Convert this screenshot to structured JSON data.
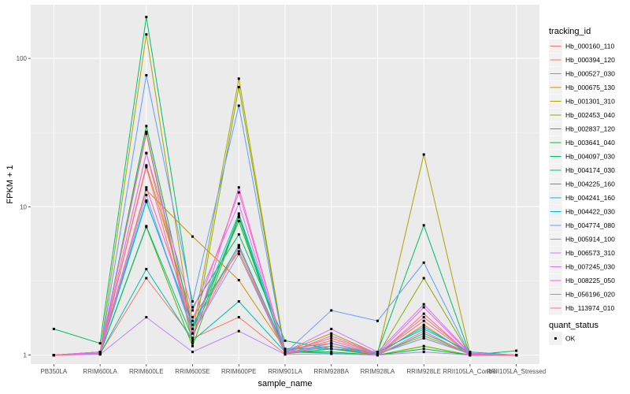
{
  "chart_data": {
    "type": "line",
    "xlabel": "sample_name",
    "ylabel": "FPKM + 1",
    "y_scale": "log10",
    "ylim": [
      0.87,
      230
    ],
    "y_ticks": [
      1,
      10,
      100
    ],
    "y_tick_labels": [
      "1",
      "10",
      "100"
    ],
    "categories": [
      "PB350LA",
      "RRIM600LA",
      "RRIM600LE",
      "RRIM600SE",
      "RRIM600PE",
      "RRIM901LA",
      "RRIM928BA",
      "RRIM928LA",
      "RRIM928LE",
      "RRII105LA_Control",
      "RRII105LA_Stressed"
    ],
    "legend_title": "tracking_id",
    "legend_position": "right",
    "grid": true,
    "series": [
      {
        "name": "Hb_000160_110",
        "color": "#F8766D",
        "values": [
          1.0,
          1.02,
          3.3,
          1.3,
          1.8,
          1.02,
          1.1,
          1.0,
          1.9,
          1.0,
          1.0
        ]
      },
      {
        "name": "Hb_000394_120",
        "color": "#F07F4A",
        "values": [
          1.0,
          1.03,
          23,
          1.5,
          5.5,
          1.05,
          1.3,
          1.02,
          1.7,
          1.02,
          1.0
        ]
      },
      {
        "name": "Hb_000527_030",
        "color": "#DC8A1E",
        "values": [
          1.0,
          1.02,
          19,
          1.8,
          5.0,
          1.03,
          1.2,
          1.0,
          1.6,
          1.0,
          1.0
        ]
      },
      {
        "name": "Hb_000675_130",
        "color": "#C89400",
        "values": [
          1.0,
          1.05,
          13,
          6.3,
          3.2,
          1.1,
          1.2,
          1.02,
          1.35,
          1.02,
          1.0
        ]
      },
      {
        "name": "Hb_001301_310",
        "color": "#ABA300",
        "values": [
          1.0,
          1.05,
          145,
          1.4,
          73,
          1.05,
          1.4,
          1.02,
          22.5,
          1.02,
          1.0
        ]
      },
      {
        "name": "Hb_002453_040",
        "color": "#8BAB00",
        "values": [
          1.0,
          1.03,
          31,
          1.2,
          64,
          1.03,
          1.15,
          1.0,
          3.3,
          1.0,
          1.0
        ]
      },
      {
        "name": "Hb_002837_120",
        "color": "#53B400",
        "values": [
          1.0,
          1.02,
          7.3,
          1.15,
          8.5,
          1.02,
          1.1,
          1.0,
          1.15,
          1.0,
          1.0
        ]
      },
      {
        "name": "Hb_003641_040",
        "color": "#00BA38",
        "values": [
          1.0,
          1.02,
          35,
          1.5,
          8.0,
          1.05,
          1.05,
          1.0,
          1.1,
          1.0,
          1.0
        ]
      },
      {
        "name": "Hb_004097_030",
        "color": "#00BE67",
        "values": [
          1.5,
          1.2,
          190,
          2.1,
          6.5,
          1.25,
          1.1,
          1.05,
          7.5,
          1.0,
          1.07
        ]
      },
      {
        "name": "Hb_004174_030",
        "color": "#00C08B",
        "values": [
          1.0,
          1.03,
          7.4,
          1.3,
          8.7,
          1.03,
          1.1,
          1.02,
          1.3,
          1.02,
          1.0
        ]
      },
      {
        "name": "Hb_004225_160",
        "color": "#00C1AA",
        "values": [
          1.0,
          1.02,
          3.8,
          1.25,
          2.3,
          1.05,
          1.03,
          1.0,
          1.4,
          1.02,
          1.0
        ]
      },
      {
        "name": "Hb_004241_160",
        "color": "#00BFC4",
        "values": [
          1.0,
          1.05,
          11,
          1.5,
          9.0,
          1.1,
          1.1,
          1.05,
          1.5,
          1.05,
          1.0
        ]
      },
      {
        "name": "Hb_004422_030",
        "color": "#00B8E7",
        "values": [
          1.0,
          1.03,
          10.8,
          1.6,
          5.5,
          1.08,
          1.15,
          1.03,
          1.55,
          1.03,
          1.0
        ]
      },
      {
        "name": "Hb_004774_080",
        "color": "#619CFF",
        "values": [
          1.0,
          1.02,
          77,
          2.3,
          48,
          1.03,
          2.0,
          1.7,
          4.2,
          1.0,
          1.0
        ]
      },
      {
        "name": "Hb_005914_100",
        "color": "#8B93FF",
        "values": [
          1.0,
          1.03,
          12,
          1.4,
          4.8,
          1.03,
          1.2,
          1.02,
          1.3,
          1.02,
          1.0
        ]
      },
      {
        "name": "Hb_006573_310",
        "color": "#B983FF",
        "values": [
          1.0,
          1.01,
          1.8,
          1.05,
          1.45,
          1.01,
          1.02,
          1.0,
          1.05,
          1.0,
          1.0
        ]
      },
      {
        "name": "Hb_007245_030",
        "color": "#DB72FB",
        "values": [
          1.0,
          1.03,
          23,
          2.0,
          10.5,
          1.05,
          1.5,
          1.05,
          2.2,
          1.03,
          1.0
        ]
      },
      {
        "name": "Hb_008225_050",
        "color": "#F265E7",
        "values": [
          1.0,
          1.05,
          32,
          1.3,
          13.5,
          1.02,
          1.35,
          1.02,
          2.1,
          1.02,
          1.0
        ]
      },
      {
        "name": "Hb_056196_020",
        "color": "#FF62BC",
        "values": [
          1.0,
          1.02,
          13.5,
          1.7,
          12.5,
          1.05,
          1.25,
          1.02,
          1.8,
          1.02,
          1.0
        ]
      },
      {
        "name": "Hb_113974_010",
        "color": "#FF6C91",
        "values": [
          1.0,
          1.02,
          18.5,
          1.4,
          5.3,
          1.02,
          1.15,
          1.0,
          1.45,
          1.0,
          1.0
        ]
      }
    ],
    "legend2_title": "quant_status",
    "legend2_items": [
      "OK"
    ]
  }
}
